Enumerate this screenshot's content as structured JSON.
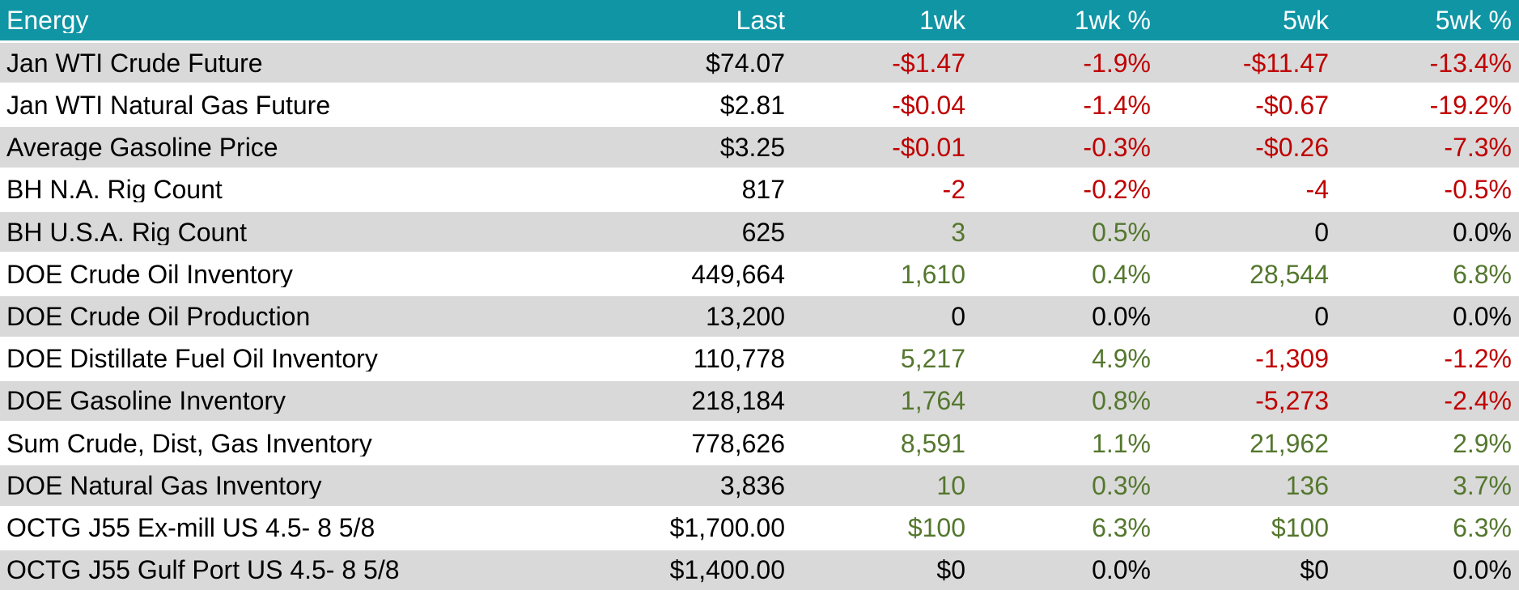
{
  "colors": {
    "header_bg": "#1095A5",
    "header_text": "#FFFFFF",
    "row_bg": "#FFFFFF",
    "row_alt_bg": "#D9D9D9",
    "separator": "#FFFFFF",
    "neutral": "#000000",
    "negative": "#C00000",
    "positive": "#54772E"
  },
  "table": {
    "columns": [
      {
        "key": "energy",
        "label": "Energy"
      },
      {
        "key": "last",
        "label": "Last"
      },
      {
        "key": "1wk",
        "label": "1wk"
      },
      {
        "key": "1wk-pct",
        "label": "1wk %"
      },
      {
        "key": "5wk",
        "label": "5wk"
      },
      {
        "key": "5wk-pct",
        "label": "5wk %"
      }
    ],
    "rows": [
      {
        "label": "Jan WTI Crude Future",
        "cells": [
          {
            "text": "$74.07",
            "tone": "plain"
          },
          {
            "text": "-$1.47",
            "tone": "neg"
          },
          {
            "text": "-1.9%",
            "tone": "neg"
          },
          {
            "text": "-$11.47",
            "tone": "neg"
          },
          {
            "text": "-13.4%",
            "tone": "neg"
          }
        ]
      },
      {
        "label": "Jan WTI Natural Gas Future",
        "cells": [
          {
            "text": "$2.81",
            "tone": "plain"
          },
          {
            "text": "-$0.04",
            "tone": "neg"
          },
          {
            "text": "-1.4%",
            "tone": "neg"
          },
          {
            "text": "-$0.67",
            "tone": "neg"
          },
          {
            "text": "-19.2%",
            "tone": "neg"
          }
        ]
      },
      {
        "label": "Average Gasoline Price",
        "cells": [
          {
            "text": "$3.25",
            "tone": "plain"
          },
          {
            "text": "-$0.01",
            "tone": "neg"
          },
          {
            "text": "-0.3%",
            "tone": "neg"
          },
          {
            "text": "-$0.26",
            "tone": "neg"
          },
          {
            "text": "-7.3%",
            "tone": "neg"
          }
        ]
      },
      {
        "label": "BH N.A. Rig Count",
        "cells": [
          {
            "text": "817",
            "tone": "plain"
          },
          {
            "text": "-2",
            "tone": "neg"
          },
          {
            "text": "-0.2%",
            "tone": "neg"
          },
          {
            "text": "-4",
            "tone": "neg"
          },
          {
            "text": "-0.5%",
            "tone": "neg"
          }
        ]
      },
      {
        "label": "BH U.S.A. Rig Count",
        "cells": [
          {
            "text": "625",
            "tone": "plain"
          },
          {
            "text": "3",
            "tone": "pos"
          },
          {
            "text": "0.5%",
            "tone": "pos"
          },
          {
            "text": "0",
            "tone": "plain"
          },
          {
            "text": "0.0%",
            "tone": "plain"
          }
        ]
      },
      {
        "label": "DOE Crude Oil Inventory",
        "cells": [
          {
            "text": "449,664",
            "tone": "plain"
          },
          {
            "text": "1,610",
            "tone": "pos"
          },
          {
            "text": "0.4%",
            "tone": "pos"
          },
          {
            "text": "28,544",
            "tone": "pos"
          },
          {
            "text": "6.8%",
            "tone": "pos"
          }
        ]
      },
      {
        "label": "DOE Crude Oil Production",
        "cells": [
          {
            "text": "13,200",
            "tone": "plain"
          },
          {
            "text": "0",
            "tone": "plain"
          },
          {
            "text": "0.0%",
            "tone": "plain"
          },
          {
            "text": "0",
            "tone": "plain"
          },
          {
            "text": "0.0%",
            "tone": "plain"
          }
        ]
      },
      {
        "label": "DOE Distillate Fuel Oil Inventory",
        "cells": [
          {
            "text": "110,778",
            "tone": "plain"
          },
          {
            "text": "5,217",
            "tone": "pos"
          },
          {
            "text": "4.9%",
            "tone": "pos"
          },
          {
            "text": "-1,309",
            "tone": "neg"
          },
          {
            "text": "-1.2%",
            "tone": "neg"
          }
        ]
      },
      {
        "label": "DOE Gasoline Inventory",
        "cells": [
          {
            "text": "218,184",
            "tone": "plain"
          },
          {
            "text": "1,764",
            "tone": "pos"
          },
          {
            "text": "0.8%",
            "tone": "pos"
          },
          {
            "text": "-5,273",
            "tone": "neg"
          },
          {
            "text": "-2.4%",
            "tone": "neg"
          }
        ]
      },
      {
        "label": "Sum Crude, Dist, Gas Inventory",
        "cells": [
          {
            "text": "778,626",
            "tone": "plain"
          },
          {
            "text": "8,591",
            "tone": "pos"
          },
          {
            "text": "1.1%",
            "tone": "pos"
          },
          {
            "text": "21,962",
            "tone": "pos"
          },
          {
            "text": "2.9%",
            "tone": "pos"
          }
        ]
      },
      {
        "label": "DOE Natural Gas Inventory",
        "cells": [
          {
            "text": "3,836",
            "tone": "plain"
          },
          {
            "text": "10",
            "tone": "pos"
          },
          {
            "text": "0.3%",
            "tone": "pos"
          },
          {
            "text": "136",
            "tone": "pos"
          },
          {
            "text": "3.7%",
            "tone": "pos"
          }
        ]
      },
      {
        "label": "OCTG J55 Ex-mill US 4.5- 8 5/8",
        "cells": [
          {
            "text": "$1,700.00",
            "tone": "plain"
          },
          {
            "text": "$100",
            "tone": "pos"
          },
          {
            "text": "6.3%",
            "tone": "pos"
          },
          {
            "text": "$100",
            "tone": "pos"
          },
          {
            "text": "6.3%",
            "tone": "pos"
          }
        ]
      },
      {
        "label": "OCTG J55 Gulf Port US 4.5- 8 5/8",
        "cells": [
          {
            "text": "$1,400.00",
            "tone": "plain"
          },
          {
            "text": "$0",
            "tone": "plain"
          },
          {
            "text": "0.0%",
            "tone": "plain"
          },
          {
            "text": "$0",
            "tone": "plain"
          },
          {
            "text": "0.0%",
            "tone": "plain"
          }
        ]
      }
    ]
  },
  "chart_data": {
    "type": "table",
    "title": "Energy",
    "columns": [
      "Energy",
      "Last",
      "1wk",
      "1wk %",
      "5wk",
      "5wk %"
    ],
    "rows": [
      [
        "Jan WTI Crude Future",
        "$74.07",
        "-$1.47",
        "-1.9%",
        "-$11.47",
        "-13.4%"
      ],
      [
        "Jan WTI Natural Gas Future",
        "$2.81",
        "-$0.04",
        "-1.4%",
        "-$0.67",
        "-19.2%"
      ],
      [
        "Average Gasoline Price",
        "$3.25",
        "-$0.01",
        "-0.3%",
        "-$0.26",
        "-7.3%"
      ],
      [
        "BH N.A. Rig Count",
        "817",
        "-2",
        "-0.2%",
        "-4",
        "-0.5%"
      ],
      [
        "BH U.S.A. Rig Count",
        "625",
        "3",
        "0.5%",
        "0",
        "0.0%"
      ],
      [
        "DOE Crude Oil Inventory",
        "449,664",
        "1,610",
        "0.4%",
        "28,544",
        "6.8%"
      ],
      [
        "DOE Crude Oil Production",
        "13,200",
        "0",
        "0.0%",
        "0",
        "0.0%"
      ],
      [
        "DOE Distillate Fuel Oil Inventory",
        "110,778",
        "5,217",
        "4.9%",
        "-1,309",
        "-1.2%"
      ],
      [
        "DOE Gasoline Inventory",
        "218,184",
        "1,764",
        "0.8%",
        "-5,273",
        "-2.4%"
      ],
      [
        "Sum Crude, Dist, Gas Inventory",
        "778,626",
        "8,591",
        "1.1%",
        "21,962",
        "2.9%"
      ],
      [
        "DOE Natural Gas Inventory",
        "3,836",
        "10",
        "0.3%",
        "136",
        "3.7%"
      ],
      [
        "OCTG J55 Ex-mill US 4.5- 8 5/8",
        "$1,700.00",
        "$100",
        "6.3%",
        "$100",
        "6.3%"
      ],
      [
        "OCTG J55 Gulf Port US 4.5- 8 5/8",
        "$1,400.00",
        "$0",
        "0.0%",
        "$0",
        "0.0%"
      ]
    ],
    "value_color_rules": {
      "negative_text": "#C00000",
      "positive_text": "#54772E",
      "zero_or_neutral_text": "#000000"
    }
  }
}
